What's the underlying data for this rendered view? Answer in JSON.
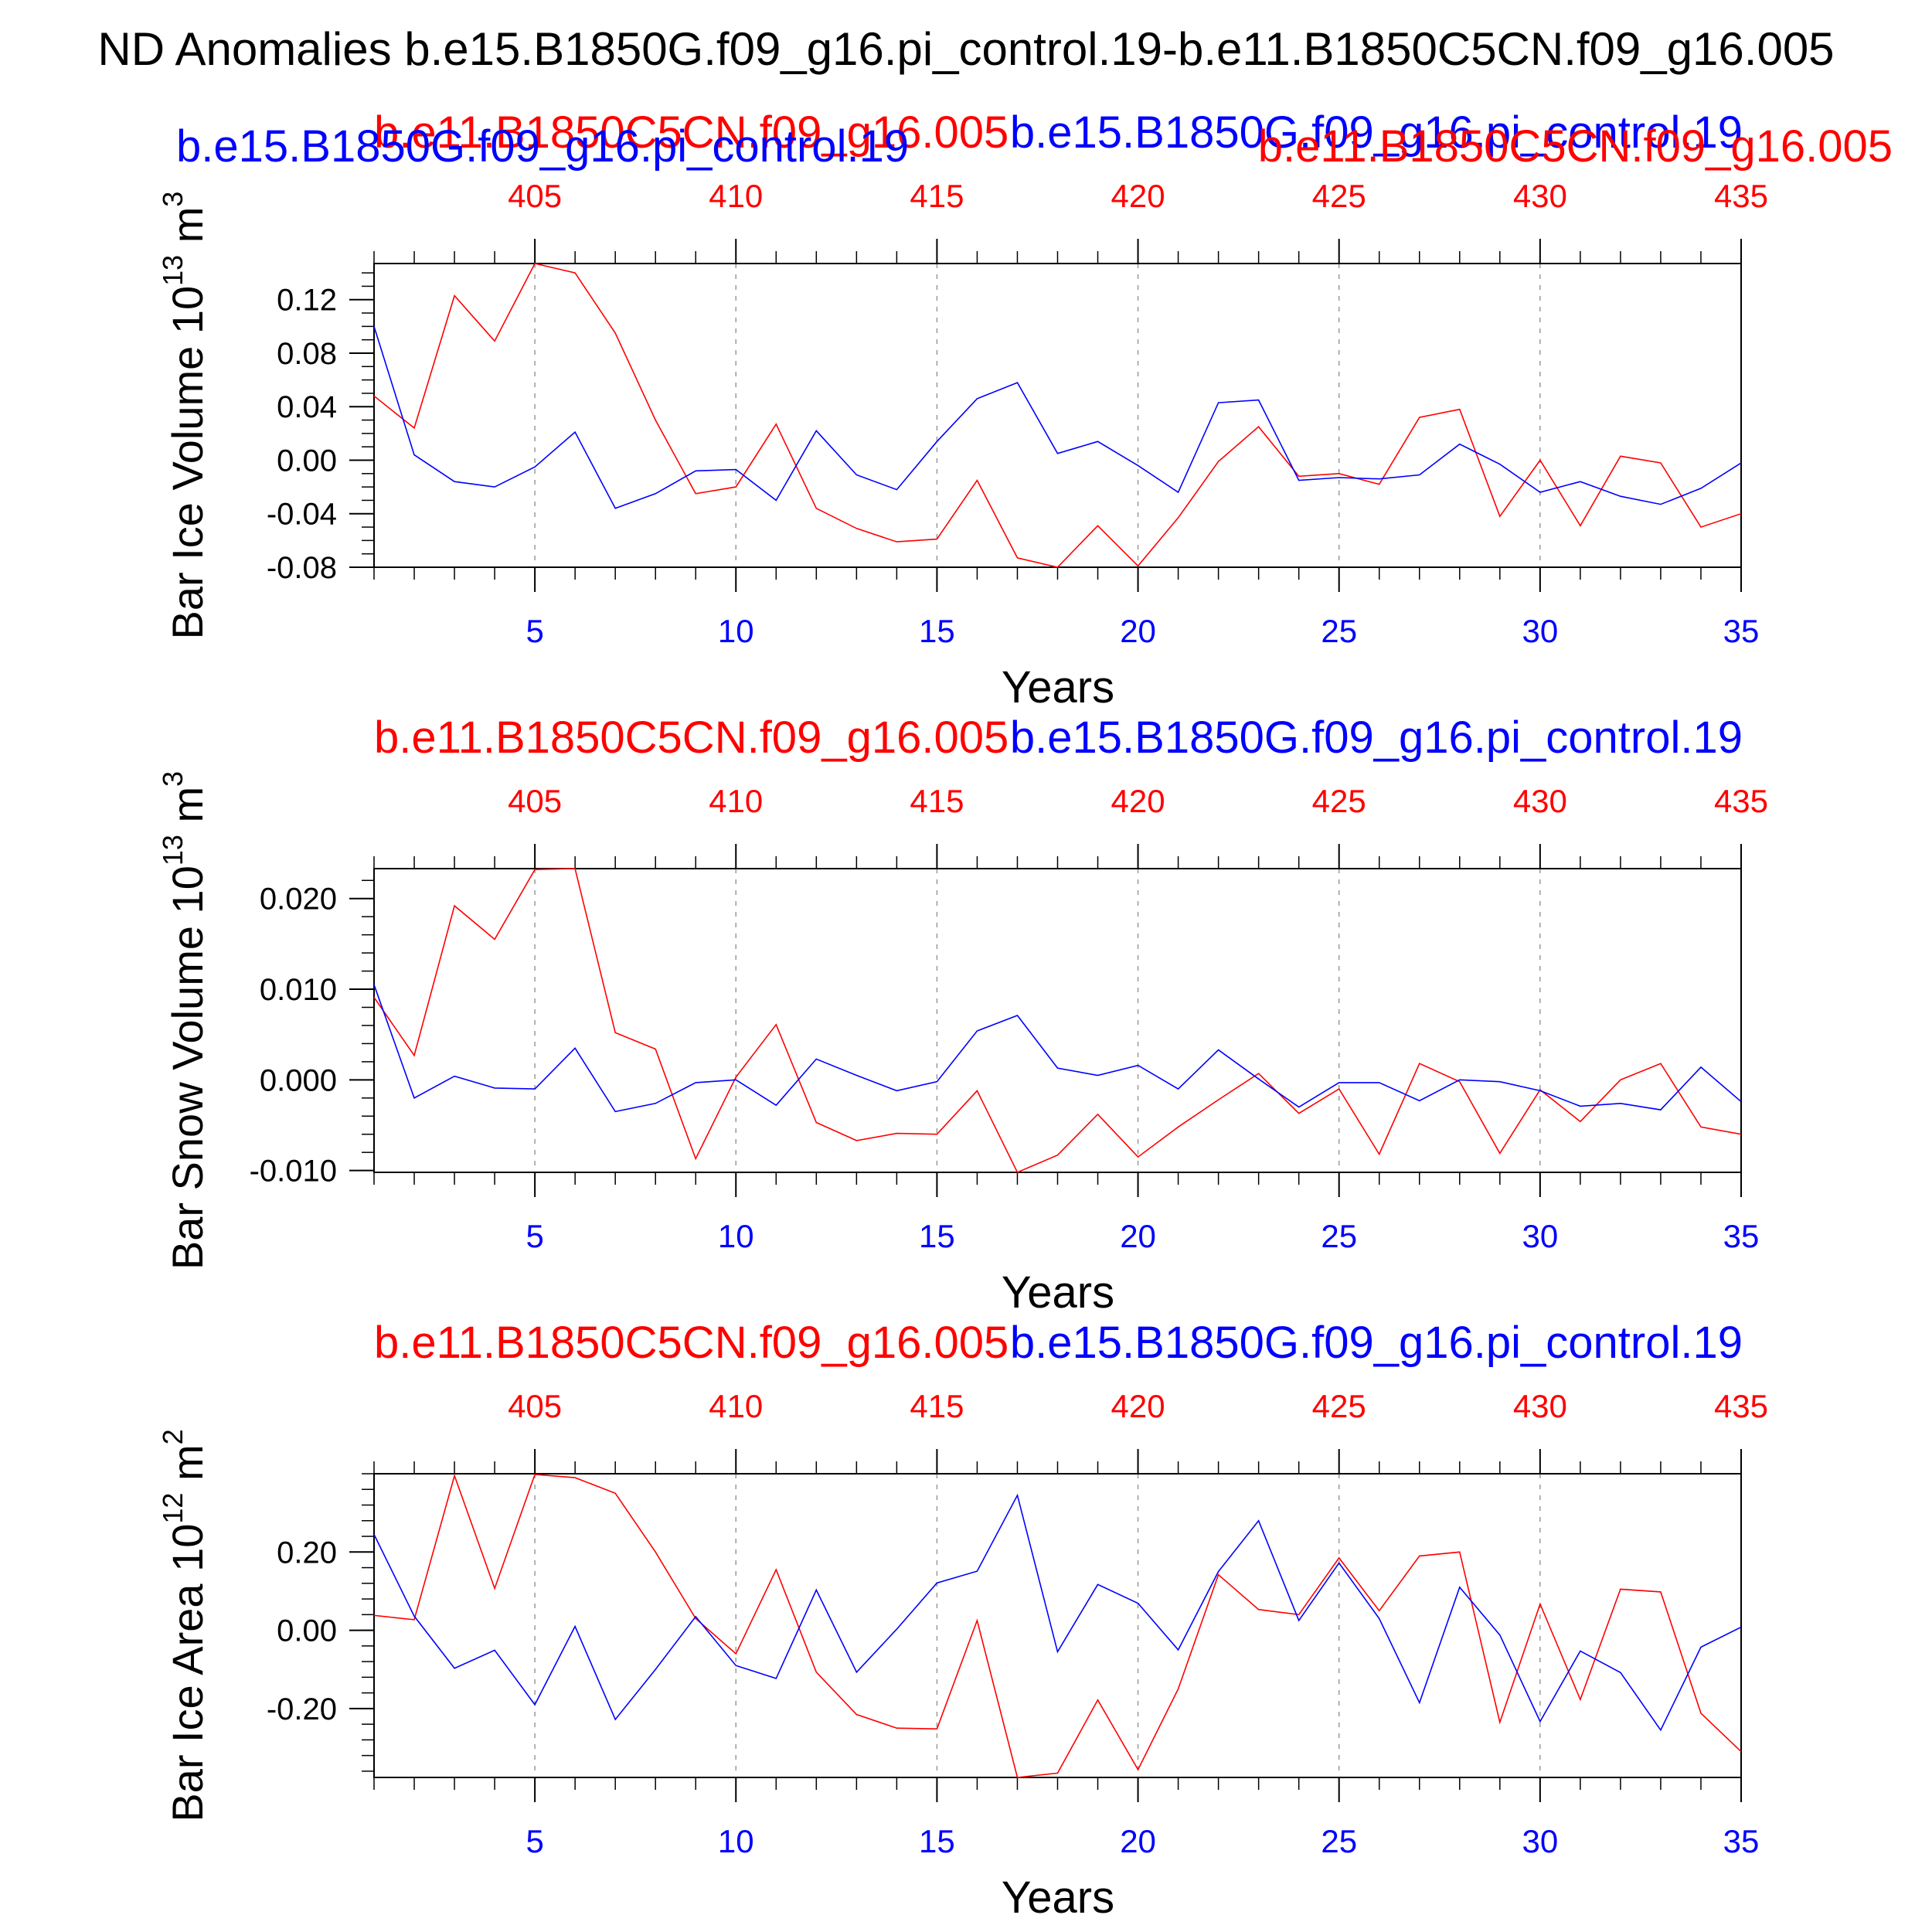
{
  "title": "ND Anomalies b.e15.B1850G.f09_g16.pi_control.19-b.e11.B1850C5CN.f09_g16.005",
  "colors": {
    "red": "#ff0000",
    "blue": "#0000ff",
    "black": "#000000",
    "grid": "#999999"
  },
  "chart_data": [
    {
      "type": "line",
      "ylabel_main": "Bar Ice Volume 10",
      "ylabel_exp": "13",
      "ylabel_unit": " m",
      "ylabel_unit_exp": "3",
      "xlabel": "Years",
      "red_series_title": "b.e11.B1850C5CN.f09_g16.005",
      "blue_series_title": "b.e15.B1850G.f09_g16.pi_control.19",
      "extra_blue_title": "b.e15.B1850G.f09_g16.pi_control.19",
      "extra_red_title": "b.e11.B1850C5CN.f09_g16.005",
      "xlim": [
        1,
        35
      ],
      "ylim": [
        -0.08,
        0.147
      ],
      "yticks": [
        -0.08,
        -0.04,
        0.0,
        0.04,
        0.08,
        0.12
      ],
      "ytick_labels": [
        "-0.08",
        "-0.04",
        "0.00",
        "0.04",
        "0.08",
        "0.12"
      ],
      "yminor_step": 0.01,
      "xticks_bottom": [
        5,
        10,
        15,
        20,
        25,
        30,
        35
      ],
      "xtick_labels_bottom": [
        "5",
        "10",
        "15",
        "20",
        "25",
        "30",
        "35"
      ],
      "xtick_labels_top": [
        "405",
        "410",
        "415",
        "420",
        "425",
        "430",
        "435"
      ],
      "series": [
        {
          "name": "b.e11.B1850C5CN.f09_g16.005",
          "color": "#ff0000",
          "values": [
            0.048,
            0.024,
            0.123,
            0.089,
            0.147,
            0.14,
            0.095,
            0.03,
            -0.025,
            -0.02,
            0.027,
            -0.036,
            -0.051,
            -0.061,
            -0.059,
            -0.015,
            -0.073,
            -0.08,
            -0.049,
            -0.079,
            -0.043,
            -0.001,
            0.025,
            -0.012,
            -0.01,
            -0.018,
            0.032,
            0.038,
            -0.042,
            0.0,
            -0.049,
            0.003,
            -0.002,
            -0.05,
            -0.04
          ]
        },
        {
          "name": "b.e15.B1850G.f09_g16.pi_control.19",
          "color": "#0000ff",
          "values": [
            0.1,
            0.004,
            -0.016,
            -0.02,
            -0.005,
            0.021,
            -0.036,
            -0.025,
            -0.008,
            -0.007,
            -0.03,
            0.022,
            -0.011,
            -0.022,
            0.014,
            0.046,
            0.058,
            0.005,
            0.014,
            -0.004,
            -0.024,
            0.043,
            0.045,
            -0.015,
            -0.013,
            -0.014,
            -0.011,
            0.012,
            -0.003,
            -0.024,
            -0.016,
            -0.027,
            -0.033,
            -0.021,
            -0.002
          ]
        }
      ]
    },
    {
      "type": "line",
      "ylabel_main": "Bar Snow Volume 10",
      "ylabel_exp": "13",
      "ylabel_unit": " m",
      "ylabel_unit_exp": "3",
      "xlabel": "Years",
      "red_series_title": "b.e11.B1850C5CN.f09_g16.005",
      "blue_series_title": "b.e15.B1850G.f09_g16.pi_control.19",
      "xlim": [
        1,
        35
      ],
      "ylim": [
        -0.0102,
        0.0233
      ],
      "yticks": [
        -0.01,
        0.0,
        0.01,
        0.02
      ],
      "ytick_labels": [
        "-0.010",
        "0.000",
        "0.010",
        "0.020"
      ],
      "yminor_step": 0.002,
      "xticks_bottom": [
        5,
        10,
        15,
        20,
        25,
        30,
        35
      ],
      "xtick_labels_bottom": [
        "5",
        "10",
        "15",
        "20",
        "25",
        "30",
        "35"
      ],
      "xtick_labels_top": [
        "405",
        "410",
        "415",
        "420",
        "425",
        "430",
        "435"
      ],
      "series": [
        {
          "name": "b.e11.B1850C5CN.f09_g16.005",
          "color": "#ff0000",
          "values": [
            0.0091,
            0.0027,
            0.0192,
            0.0155,
            0.0232,
            0.0233,
            0.0052,
            0.0034,
            -0.0087,
            0.0003,
            0.0061,
            -0.0047,
            -0.0067,
            -0.0059,
            -0.006,
            -0.0012,
            -0.0102,
            -0.0083,
            -0.0038,
            -0.0085,
            -0.0052,
            -0.0022,
            0.0007,
            -0.0037,
            -0.001,
            -0.0082,
            0.0018,
            -0.0002,
            -0.0081,
            -0.0011,
            -0.0046,
            0.0,
            0.0018,
            -0.0052,
            -0.006
          ]
        },
        {
          "name": "b.e15.B1850G.f09_g16.pi_control.19",
          "color": "#0000ff",
          "values": [
            0.0105,
            -0.002,
            0.0004,
            -0.0009,
            -0.001,
            0.0035,
            -0.0035,
            -0.0026,
            -0.0003,
            0.0,
            -0.0028,
            0.0023,
            0.0005,
            -0.0012,
            -0.0002,
            0.0054,
            0.0071,
            0.0013,
            0.0005,
            0.0016,
            -0.001,
            0.0033,
            0.0001,
            -0.003,
            -0.0003,
            -0.0003,
            -0.0023,
            0.0,
            -0.0002,
            -0.0012,
            -0.0029,
            -0.0026,
            -0.0033,
            0.0014,
            -0.0024
          ]
        }
      ]
    },
    {
      "type": "line",
      "ylabel_main": "Bar Ice Area 10",
      "ylabel_exp": "12",
      "ylabel_unit": " m",
      "ylabel_unit_exp": "2",
      "xlabel": "Years",
      "red_series_title": "b.e11.B1850C5CN.f09_g16.005",
      "blue_series_title": "b.e15.B1850G.f09_g16.pi_control.19",
      "xlim": [
        1,
        35
      ],
      "ylim": [
        -0.376,
        0.4
      ],
      "yticks": [
        -0.2,
        0.0,
        0.2
      ],
      "ytick_labels": [
        "-0.20",
        "0.00",
        "0.20"
      ],
      "yminor_step": 0.04,
      "xticks_bottom": [
        5,
        10,
        15,
        20,
        25,
        30,
        35
      ],
      "xtick_labels_bottom": [
        "5",
        "10",
        "15",
        "20",
        "25",
        "30",
        "35"
      ],
      "xtick_labels_top": [
        "405",
        "410",
        "415",
        "420",
        "425",
        "430",
        "435"
      ],
      "series": [
        {
          "name": "b.e11.B1850C5CN.f09_g16.005",
          "color": "#ff0000",
          "values": [
            0.038,
            0.027,
            0.395,
            0.107,
            0.398,
            0.39,
            0.35,
            0.2,
            0.03,
            -0.06,
            0.155,
            -0.107,
            -0.215,
            -0.25,
            -0.252,
            0.025,
            -0.376,
            -0.365,
            -0.178,
            -0.356,
            -0.15,
            0.142,
            0.053,
            0.04,
            0.185,
            0.05,
            0.19,
            0.2,
            -0.235,
            0.067,
            -0.177,
            0.105,
            0.098,
            -0.212,
            -0.31
          ]
        },
        {
          "name": "b.e15.B1850G.f09_g16.pi_control.19",
          "color": "#0000ff",
          "values": [
            0.245,
            0.036,
            -0.097,
            -0.051,
            -0.19,
            0.01,
            -0.228,
            -0.1,
            0.035,
            -0.09,
            -0.123,
            0.103,
            -0.107,
            0.003,
            0.121,
            0.151,
            0.345,
            -0.055,
            0.117,
            0.069,
            -0.05,
            0.15,
            0.28,
            0.025,
            0.172,
            0.03,
            -0.185,
            0.11,
            -0.012,
            -0.233,
            -0.053,
            -0.108,
            -0.255,
            -0.043,
            0.008
          ]
        }
      ]
    }
  ]
}
